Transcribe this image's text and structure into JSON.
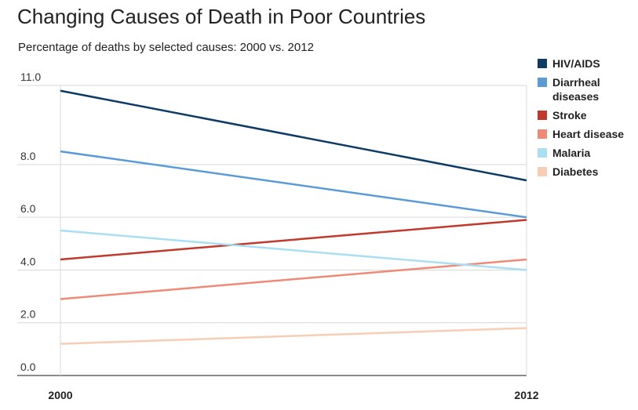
{
  "header": {
    "title": "Changing Causes of Death in Poor Countries",
    "subtitle": "Percentage of deaths by selected causes: 2000 vs. 2012"
  },
  "chart_data": {
    "type": "line",
    "title": "Changing Causes of Death in Poor Countries",
    "subtitle": "Percentage of deaths by selected causes: 2000 vs. 2012",
    "xlabel": "",
    "ylabel": "",
    "x": [
      "2000",
      "2012"
    ],
    "ylim": [
      0,
      11
    ],
    "yticks": [
      {
        "value": 0,
        "label": "0.0"
      },
      {
        "value": 2,
        "label": "2.0"
      },
      {
        "value": 4,
        "label": "4.0"
      },
      {
        "value": 6,
        "label": "6.0"
      },
      {
        "value": 8,
        "label": "8.0"
      },
      {
        "value": 11,
        "label": "11.0"
      }
    ],
    "grid": true,
    "legend_position": "right",
    "series": [
      {
        "name": "HIV/AIDS",
        "values": [
          10.8,
          7.4
        ],
        "color": "#0d3b66"
      },
      {
        "name": "Diarrheal diseases",
        "values": [
          8.5,
          6.0
        ],
        "color": "#5b9bd5"
      },
      {
        "name": "Stroke",
        "values": [
          4.4,
          5.9
        ],
        "color": "#c0392b"
      },
      {
        "name": "Heart disease",
        "values": [
          2.9,
          4.4
        ],
        "color": "#ef8a77"
      },
      {
        "name": "Malaria",
        "values": [
          5.5,
          4.0
        ],
        "color": "#a8dff2"
      },
      {
        "name": "Diabetes",
        "values": [
          1.2,
          1.8
        ],
        "color": "#f8cdb5"
      }
    ]
  }
}
